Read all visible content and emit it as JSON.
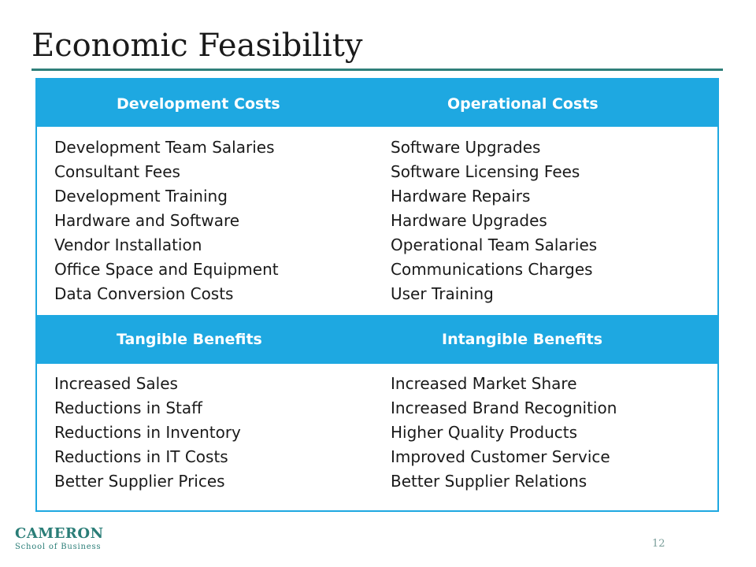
{
  "slide": {
    "title": "Economic Feasibility",
    "page_number": "12"
  },
  "table": {
    "development_costs": {
      "heading": "Development Costs",
      "items": [
        "Development Team Salaries",
        "Consultant Fees",
        "Development Training",
        "Hardware and Software",
        "Vendor Installation",
        "Office Space and Equipment",
        "Data Conversion Costs"
      ]
    },
    "operational_costs": {
      "heading": "Operational Costs",
      "items": [
        "Software Upgrades",
        "Software Licensing Fees",
        "Hardware Repairs",
        "Hardware Upgrades",
        "Operational Team Salaries",
        "Communications Charges",
        "User Training"
      ]
    },
    "tangible_benefits": {
      "heading": "Tangible Benefits",
      "items": [
        "Increased Sales",
        "Reductions in Staff",
        "Reductions in Inventory",
        "Reductions in IT Costs",
        "Better Supplier Prices"
      ]
    },
    "intangible_benefits": {
      "heading": "Intangible Benefits",
      "items": [
        "Increased Market Share",
        "Increased Brand Recognition",
        "Higher Quality Products",
        "Improved Customer Service",
        "Better Supplier Relations"
      ]
    }
  },
  "footer": {
    "logo_name": "CAMERON",
    "logo_subtitle": "School of Business"
  },
  "colors": {
    "header_band": "#1ea8e1",
    "title_rule": "#2f7f7a",
    "logo": "#2a7d77"
  }
}
